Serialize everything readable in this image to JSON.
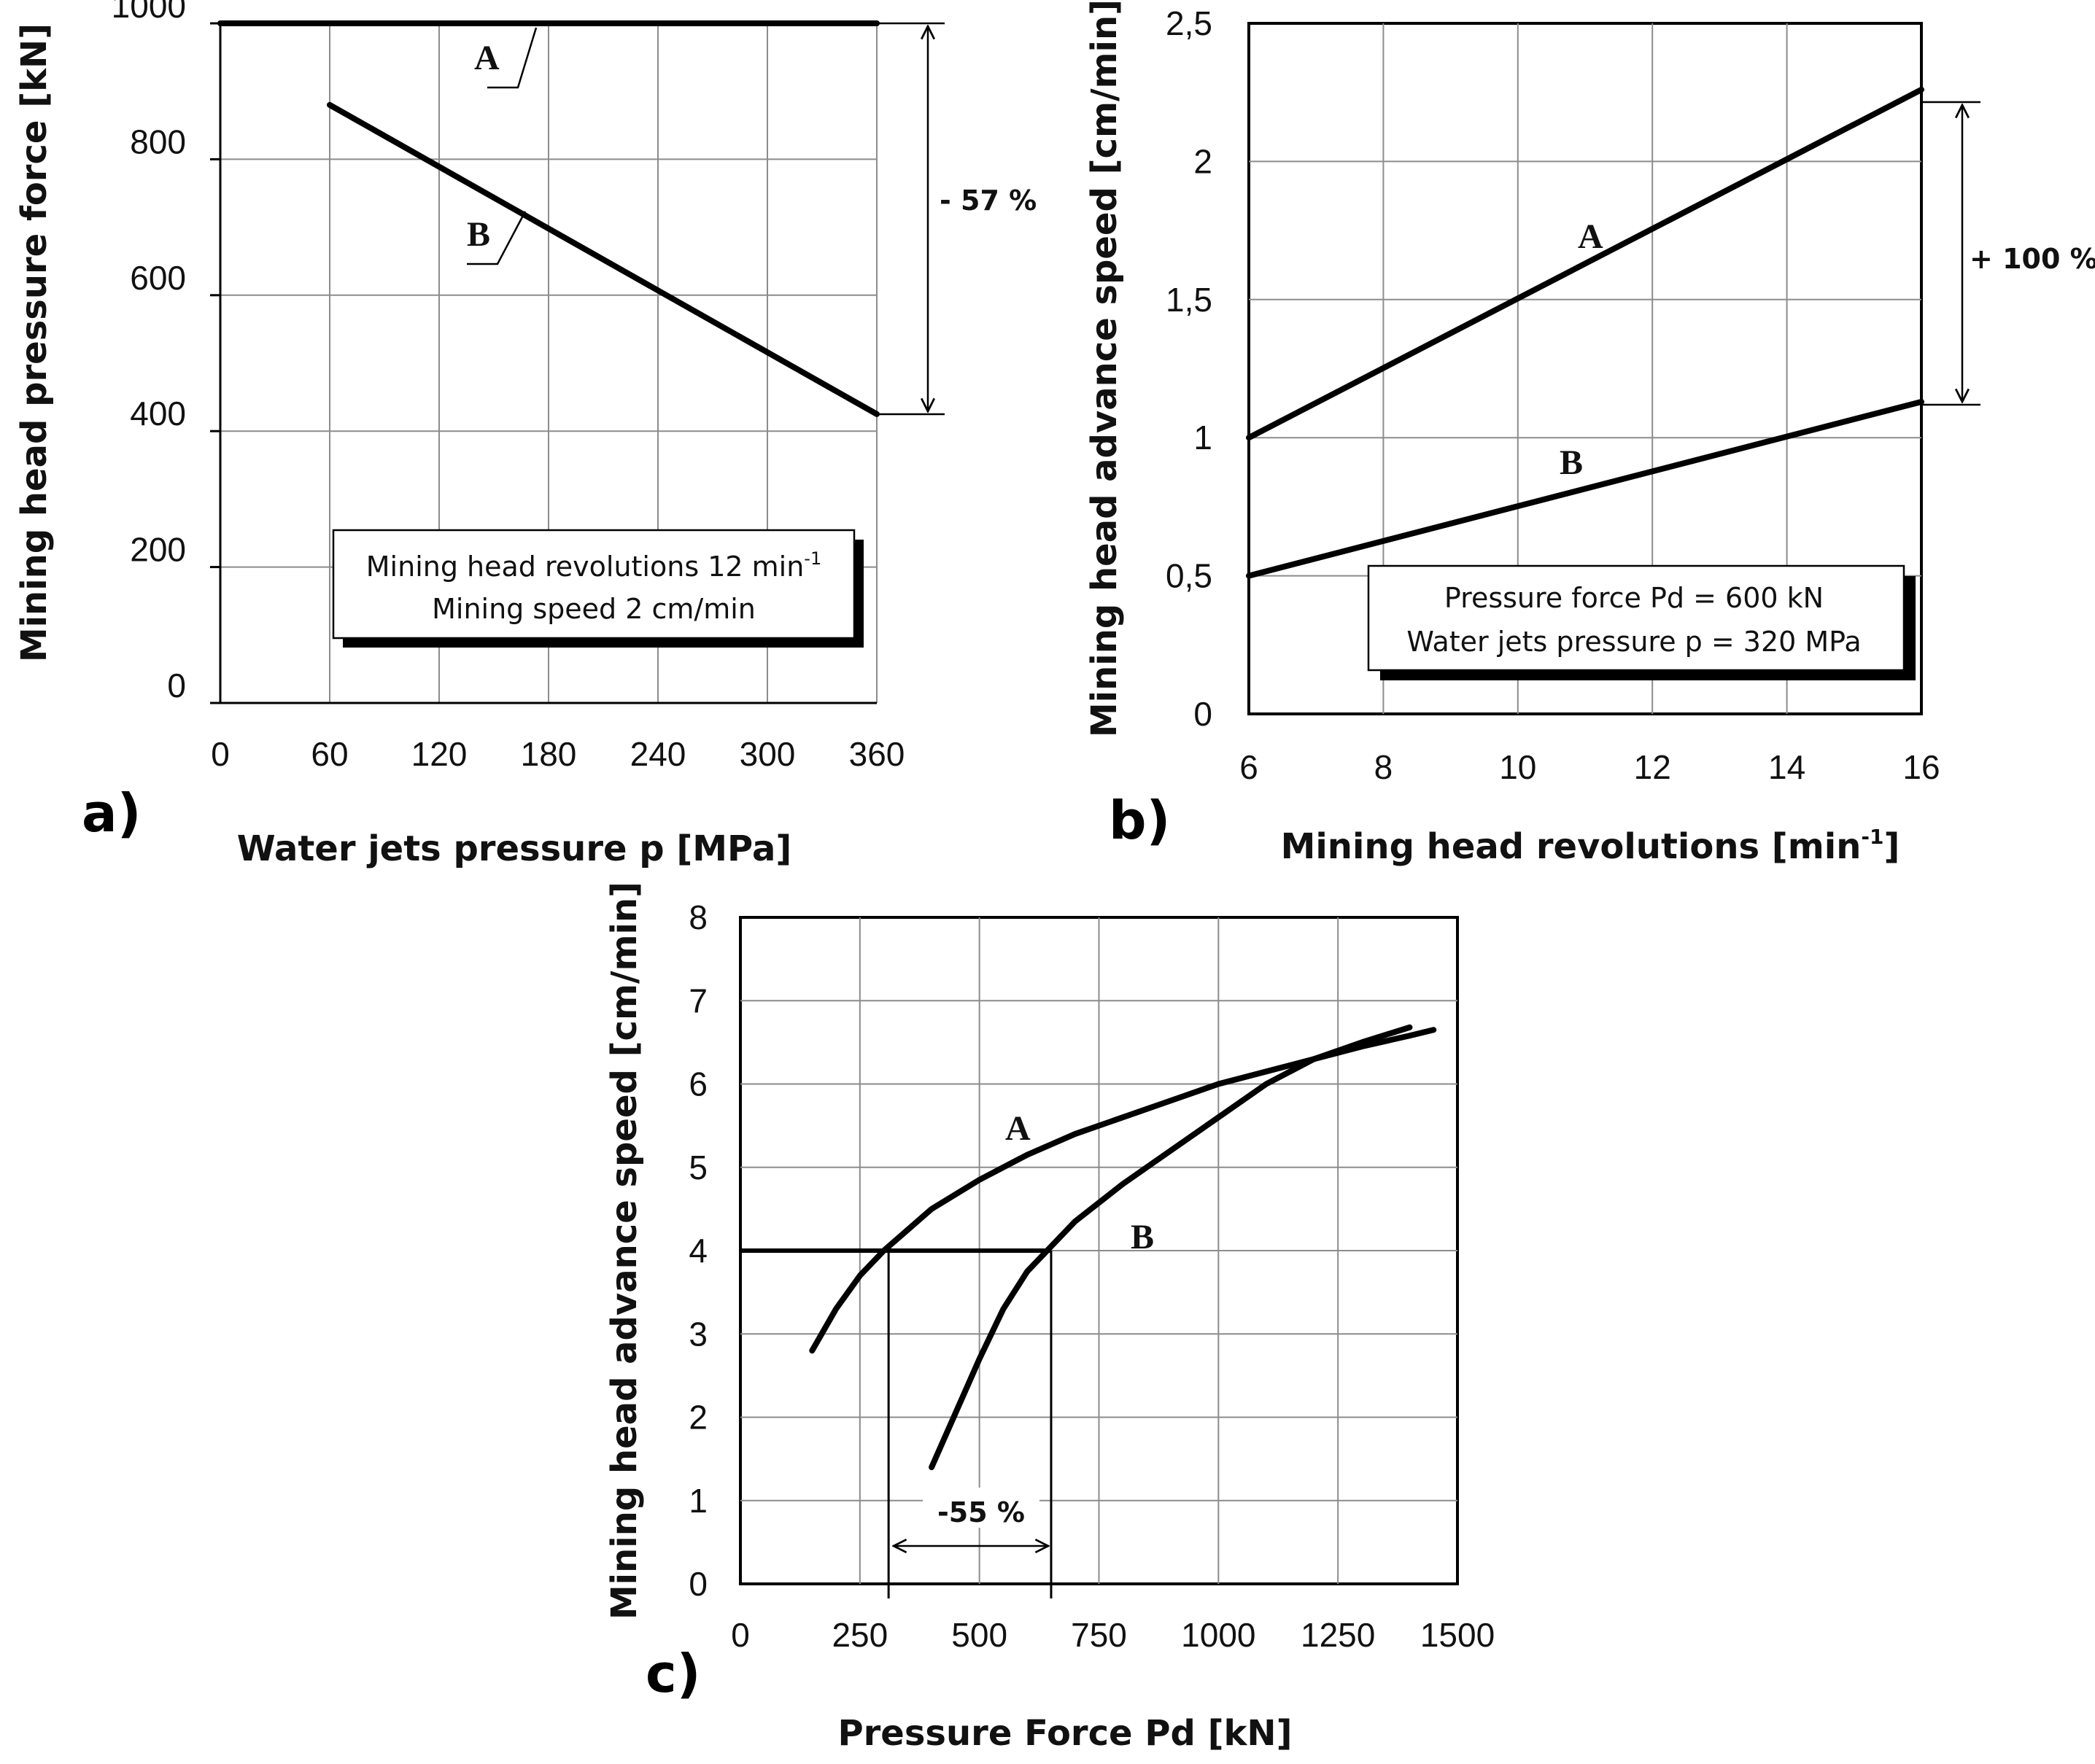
{
  "colors": {
    "series_black": "#000000",
    "series_blue": "#1f1fe0",
    "grid": "#8c8c8c",
    "frame": "#000000"
  },
  "chart_data": [
    {
      "id": "a",
      "panel_label": "a)",
      "type": "line",
      "xlabel": "Water jets pressure p  [MPa]",
      "ylabel": "Mining head pressure force [kN]",
      "xlim": [
        0,
        360
      ],
      "ylim": [
        0,
        1000
      ],
      "xticks": [
        0,
        60,
        120,
        180,
        240,
        300,
        360
      ],
      "yticks": [
        0,
        200,
        400,
        600,
        800,
        1000
      ],
      "xtick_labels": [
        "0",
        "60",
        "120",
        "180",
        "240",
        "300",
        "360"
      ],
      "ytick_labels": [
        "0",
        "200",
        "400",
        "600",
        "800",
        "1000"
      ],
      "series": [
        {
          "name": "A",
          "color": "#000000",
          "x": [
            0,
            360
          ],
          "y": [
            1000,
            1000
          ]
        },
        {
          "name": "B",
          "color": "#000000",
          "x": [
            60,
            360
          ],
          "y": [
            880,
            425
          ]
        }
      ],
      "annotations": {
        "change": "- 57 %",
        "box_lines": [
          "Mining head revolutions 12 min",
          "Mining speed 2 cm/min"
        ],
        "box_superscript": "-1"
      }
    },
    {
      "id": "b",
      "panel_label": "b)",
      "type": "line",
      "xlabel": "Mining head revolutions [min",
      "xlabel_superscript": "-1",
      "xlabel_suffix": "]",
      "ylabel": "Mining head advance speed [cm/min]",
      "xlim": [
        6,
        16
      ],
      "ylim": [
        0,
        2.5
      ],
      "xticks": [
        6,
        8,
        10,
        12,
        14,
        16
      ],
      "yticks": [
        0,
        0.5,
        1,
        1.5,
        2,
        2.5
      ],
      "xtick_labels": [
        "6",
        "8",
        "10",
        "12",
        "14",
        "16"
      ],
      "ytick_labels": [
        "0",
        "0,5",
        "1",
        "1,5",
        "2",
        "2,5"
      ],
      "series": [
        {
          "name": "A",
          "color": "#000000",
          "x": [
            6,
            16
          ],
          "y": [
            1.0,
            2.26
          ]
        },
        {
          "name": "B",
          "color": "#000000",
          "x": [
            6,
            16
          ],
          "y": [
            0.5,
            1.13
          ]
        }
      ],
      "annotations": {
        "change": "+ 100 %",
        "box_lines": [
          "Pressure force Pd = 600 kN",
          "Water jets pressure p = 320 MPa"
        ]
      }
    },
    {
      "id": "c",
      "panel_label": "c)",
      "type": "line",
      "xlabel": "Pressure Force Pd  [kN]",
      "ylabel": "Mining head advance speed  [cm/min]",
      "xlim": [
        0,
        1500
      ],
      "ylim": [
        0,
        8
      ],
      "xticks": [
        0,
        250,
        500,
        750,
        1000,
        1250,
        1500
      ],
      "yticks": [
        0,
        1,
        2,
        3,
        4,
        5,
        6,
        7,
        8
      ],
      "xtick_labels": [
        "0",
        "250",
        "500",
        "750",
        "1000",
        "1250",
        "1500"
      ],
      "ytick_labels": [
        "0",
        "1",
        "2",
        "3",
        "4",
        "5",
        "6",
        "7",
        "8"
      ],
      "series": [
        {
          "name": "A",
          "color": "#1f1fe0",
          "x": [
            150,
            200,
            250,
            300,
            350,
            400,
            500,
            600,
            700,
            800,
            900,
            1000,
            1100,
            1200,
            1300,
            1400,
            1450
          ],
          "y": [
            2.8,
            3.3,
            3.7,
            4.0,
            4.25,
            4.5,
            4.85,
            5.15,
            5.4,
            5.6,
            5.8,
            6.0,
            6.15,
            6.3,
            6.45,
            6.58,
            6.65
          ]
        },
        {
          "name": "B",
          "color": "#000000",
          "x": [
            400,
            450,
            500,
            550,
            600,
            650,
            700,
            800,
            900,
            1000,
            1100,
            1200,
            1300,
            1400
          ],
          "y": [
            1.4,
            2.05,
            2.7,
            3.3,
            3.75,
            4.05,
            4.35,
            4.8,
            5.2,
            5.6,
            6.0,
            6.3,
            6.5,
            6.68
          ]
        }
      ],
      "reference": {
        "y": 4,
        "x_from": 0,
        "x_to": 650,
        "drop_x": [
          310,
          650
        ]
      },
      "annotations": {
        "change": "-55 %"
      }
    }
  ]
}
